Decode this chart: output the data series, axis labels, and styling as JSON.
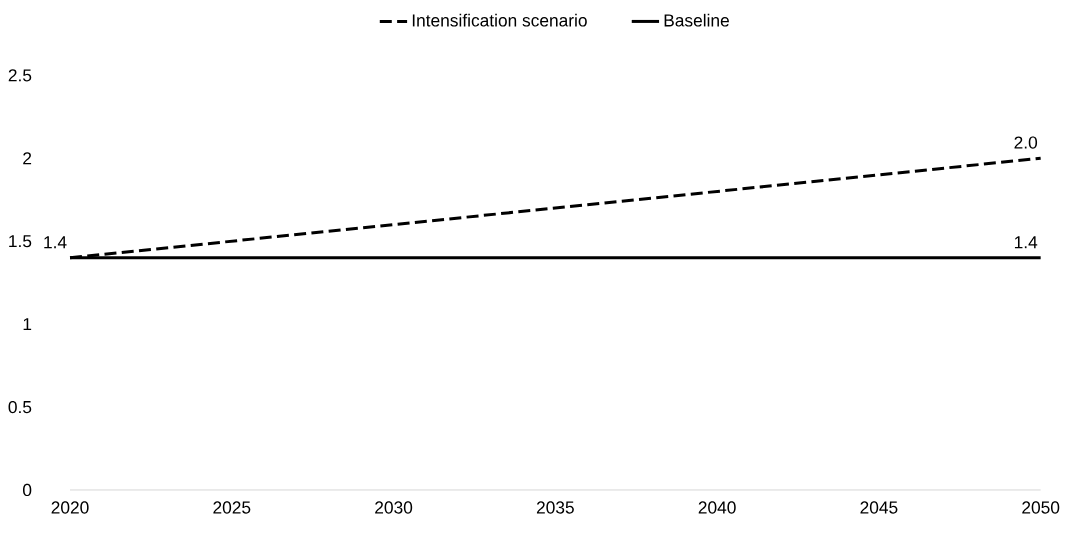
{
  "chart_data": {
    "type": "line",
    "x": [
      2020,
      2050
    ],
    "series": [
      {
        "name": "Intensification scenario",
        "color": "#000000",
        "line_style": "dashed",
        "values": [
          1.4,
          2.0
        ],
        "value_labels": [
          "1.4",
          "2.0"
        ]
      },
      {
        "name": "Baseline",
        "color": "#000000",
        "line_style": "solid",
        "values": [
          1.4,
          1.4
        ],
        "value_labels": [
          null,
          "1.4"
        ]
      }
    ],
    "xlim": [
      2020,
      2050
    ],
    "xticks": [
      2020,
      2025,
      2030,
      2035,
      2040,
      2045,
      2050
    ],
    "ylim": [
      0,
      2.5
    ],
    "yticks": [
      {
        "value": 0,
        "label": "0"
      },
      {
        "value": 0.5,
        "label": "0.5"
      },
      {
        "value": 1,
        "label": "1"
      },
      {
        "value": 1.5,
        "label": "1.5"
      },
      {
        "value": 2,
        "label": "2"
      },
      {
        "value": 2.5,
        "label": "2.5"
      }
    ],
    "grid": false,
    "legend": "top",
    "marker": "none"
  }
}
